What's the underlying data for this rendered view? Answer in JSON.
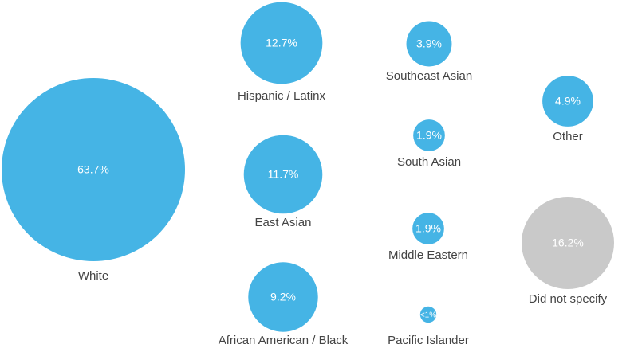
{
  "chart_data": {
    "type": "bubble",
    "categories": [
      "White",
      "Hispanic / Latinx",
      "East Asian",
      "African American / Black",
      "Southeast Asian",
      "South Asian",
      "Middle Eastern",
      "Pacific Islander",
      "Other",
      "Did not specify"
    ],
    "values": [
      63.7,
      12.7,
      11.7,
      9.2,
      3.9,
      1.9,
      1.9,
      0.5,
      4.9,
      16.2
    ],
    "value_labels": [
      "63.7%",
      "12.7%",
      "11.7%",
      "9.2%",
      "3.9%",
      "1.9%",
      "1.9%",
      "<1%",
      "4.9%",
      "16.2%"
    ],
    "colors": [
      "#45b4e5",
      "#45b4e5",
      "#45b4e5",
      "#45b4e5",
      "#45b4e5",
      "#45b4e5",
      "#45b4e5",
      "#45b4e5",
      "#45b4e5",
      "#c9c9c9"
    ]
  }
}
